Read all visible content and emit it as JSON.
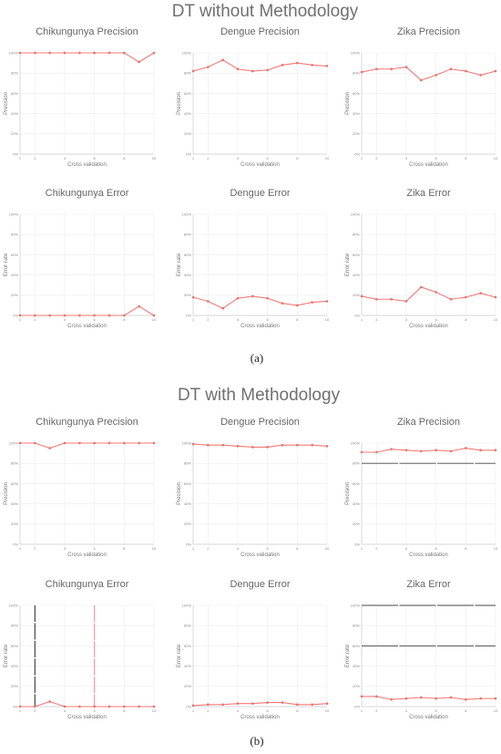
{
  "colors": {
    "series": "#f07b78",
    "point_stroke": "#e0605c",
    "artifact": "#444444",
    "artifact_pink": "#f59a98"
  },
  "sections": [
    {
      "title": "DT without Methodology",
      "panel_label": "(a)",
      "charts": [
        {
          "title": "Chikungunya Precision",
          "ylabel": "Precision",
          "xlabel": "Cross validation",
          "x": [
            1,
            2,
            3,
            4,
            5,
            6,
            7,
            8,
            9,
            10
          ],
          "values": [
            100,
            100,
            100,
            100,
            100,
            100,
            100,
            100,
            91,
            100
          ]
        },
        {
          "title": "Dengue Precision",
          "ylabel": "Precision",
          "xlabel": "Cross validation",
          "x": [
            1,
            2,
            3,
            4,
            5,
            6,
            7,
            8,
            9,
            10
          ],
          "values": [
            82,
            86,
            93,
            84,
            82,
            83,
            88,
            90,
            88,
            87
          ]
        },
        {
          "title": "Zika Precision",
          "ylabel": "Precision",
          "xlabel": "Cross validation",
          "x": [
            1,
            2,
            3,
            4,
            5,
            6,
            7,
            8,
            9,
            10
          ],
          "values": [
            81,
            84,
            84,
            86,
            73,
            78,
            84,
            82,
            78,
            82
          ]
        },
        {
          "title": "Chikungunya Error",
          "ylabel": "Error rate",
          "xlabel": "Cross validation",
          "x": [
            1,
            2,
            3,
            4,
            5,
            6,
            7,
            8,
            9,
            10
          ],
          "values": [
            0,
            0,
            0,
            0,
            0,
            0,
            0,
            0,
            9,
            0
          ]
        },
        {
          "title": "Dengue Error",
          "ylabel": "Error rate",
          "xlabel": "Cross validation",
          "x": [
            1,
            2,
            3,
            4,
            5,
            6,
            7,
            8,
            9,
            10
          ],
          "values": [
            18,
            14,
            7,
            17,
            19,
            17,
            12,
            10,
            13,
            14
          ]
        },
        {
          "title": "Zika Error",
          "ylabel": "Error rate",
          "xlabel": "Cross validation",
          "x": [
            1,
            2,
            3,
            4,
            5,
            6,
            7,
            8,
            9,
            10
          ],
          "values": [
            19,
            16,
            16,
            14,
            28,
            23,
            16,
            18,
            22,
            18
          ]
        }
      ]
    },
    {
      "title": "DT with Methodology",
      "panel_label": "(b)",
      "charts": [
        {
          "title": "Chikungunya Precision",
          "ylabel": "Precision",
          "xlabel": "Cross validation",
          "x": [
            1,
            2,
            3,
            4,
            5,
            6,
            7,
            8,
            9,
            10
          ],
          "values": [
            100,
            100,
            95,
            100,
            100,
            100,
            100,
            100,
            100,
            100
          ]
        },
        {
          "title": "Dengue Precision",
          "ylabel": "Precision",
          "xlabel": "Cross validation",
          "x": [
            1,
            2,
            3,
            4,
            5,
            6,
            7,
            8,
            9,
            10
          ],
          "values": [
            99,
            98,
            98,
            97,
            96,
            96,
            98,
            98,
            98,
            97
          ]
        },
        {
          "title": "Zika Precision",
          "ylabel": "Precision",
          "xlabel": "Cross validation",
          "x": [
            1,
            2,
            3,
            4,
            5,
            6,
            7,
            8,
            9,
            10
          ],
          "values": [
            91,
            91,
            94,
            93,
            92,
            93,
            92,
            95,
            93,
            93
          ],
          "artifact_hlines": [
            80
          ]
        },
        {
          "title": "Chikungunya Error",
          "ylabel": "Error rate",
          "xlabel": "Cross validation",
          "x": [
            1,
            2,
            3,
            4,
            5,
            6,
            7,
            8,
            9,
            10
          ],
          "values": [
            0,
            0,
            5,
            0,
            0,
            0,
            0,
            0,
            0,
            0
          ],
          "artifact_vlines": [
            2,
            6
          ]
        },
        {
          "title": "Dengue Error",
          "ylabel": "Error rate",
          "xlabel": "Cross validation",
          "x": [
            1,
            2,
            3,
            4,
            5,
            6,
            7,
            8,
            9,
            10
          ],
          "values": [
            1,
            2,
            2,
            3,
            3,
            4,
            4,
            2,
            2,
            3
          ]
        },
        {
          "title": "Zika Error",
          "ylabel": "Error rate",
          "xlabel": "Cross validation",
          "x": [
            1,
            2,
            3,
            4,
            5,
            6,
            7,
            8,
            9,
            10
          ],
          "values": [
            10,
            10,
            7,
            8,
            9,
            8,
            9,
            7,
            8,
            8
          ],
          "artifact_hlines": [
            100,
            60
          ]
        }
      ]
    }
  ],
  "chart_data": [
    {
      "type": "line",
      "title": "Chikungunya Precision",
      "xlabel": "Cross validation",
      "ylabel": "Precision",
      "x": [
        1,
        2,
        3,
        4,
        5,
        6,
        7,
        8,
        9,
        10
      ],
      "values": [
        100,
        100,
        100,
        100,
        100,
        100,
        100,
        100,
        91,
        100
      ],
      "ylim": [
        0,
        100
      ],
      "xlim": [
        1,
        10
      ],
      "grid": true,
      "legend": "none"
    },
    {
      "type": "line",
      "title": "Dengue Precision",
      "xlabel": "Cross validation",
      "ylabel": "Precision",
      "x": [
        1,
        2,
        3,
        4,
        5,
        6,
        7,
        8,
        9,
        10
      ],
      "values": [
        82,
        86,
        93,
        84,
        82,
        83,
        88,
        90,
        88,
        87
      ],
      "ylim": [
        0,
        100
      ],
      "xlim": [
        1,
        10
      ],
      "grid": true,
      "legend": "none"
    },
    {
      "type": "line",
      "title": "Zika Precision",
      "xlabel": "Cross validation",
      "ylabel": "Precision",
      "x": [
        1,
        2,
        3,
        4,
        5,
        6,
        7,
        8,
        9,
        10
      ],
      "values": [
        81,
        84,
        84,
        86,
        73,
        78,
        84,
        82,
        78,
        82
      ],
      "ylim": [
        0,
        100
      ],
      "xlim": [
        1,
        10
      ],
      "grid": true,
      "legend": "none"
    },
    {
      "type": "line",
      "title": "Chikungunya Error",
      "xlabel": "Cross validation",
      "ylabel": "Error rate",
      "x": [
        1,
        2,
        3,
        4,
        5,
        6,
        7,
        8,
        9,
        10
      ],
      "values": [
        0,
        0,
        0,
        0,
        0,
        0,
        0,
        0,
        9,
        0
      ],
      "ylim": [
        0,
        100
      ],
      "xlim": [
        1,
        10
      ],
      "grid": true,
      "legend": "none"
    },
    {
      "type": "line",
      "title": "Dengue Error",
      "xlabel": "Cross validation",
      "ylabel": "Error rate",
      "x": [
        1,
        2,
        3,
        4,
        5,
        6,
        7,
        8,
        9,
        10
      ],
      "values": [
        18,
        14,
        7,
        17,
        19,
        17,
        12,
        10,
        13,
        14
      ],
      "ylim": [
        0,
        100
      ],
      "xlim": [
        1,
        10
      ],
      "grid": true,
      "legend": "none"
    },
    {
      "type": "line",
      "title": "Zika Error",
      "xlabel": "Cross validation",
      "ylabel": "Error rate",
      "x": [
        1,
        2,
        3,
        4,
        5,
        6,
        7,
        8,
        9,
        10
      ],
      "values": [
        19,
        16,
        16,
        14,
        28,
        23,
        16,
        18,
        22,
        18
      ],
      "ylim": [
        0,
        100
      ],
      "xlim": [
        1,
        10
      ],
      "grid": true,
      "legend": "none"
    },
    {
      "type": "line",
      "title": "Chikungunya Precision",
      "xlabel": "Cross validation",
      "ylabel": "Precision",
      "x": [
        1,
        2,
        3,
        4,
        5,
        6,
        7,
        8,
        9,
        10
      ],
      "values": [
        100,
        100,
        95,
        100,
        100,
        100,
        100,
        100,
        100,
        100
      ],
      "ylim": [
        0,
        100
      ],
      "xlim": [
        1,
        10
      ],
      "grid": true,
      "legend": "none"
    },
    {
      "type": "line",
      "title": "Dengue Precision",
      "xlabel": "Cross validation",
      "ylabel": "Precision",
      "x": [
        1,
        2,
        3,
        4,
        5,
        6,
        7,
        8,
        9,
        10
      ],
      "values": [
        99,
        98,
        98,
        97,
        96,
        96,
        98,
        98,
        98,
        97
      ],
      "ylim": [
        0,
        100
      ],
      "xlim": [
        1,
        10
      ],
      "grid": true,
      "legend": "none"
    },
    {
      "type": "line",
      "title": "Zika Precision",
      "xlabel": "Cross validation",
      "ylabel": "Precision",
      "x": [
        1,
        2,
        3,
        4,
        5,
        6,
        7,
        8,
        9,
        10
      ],
      "values": [
        91,
        91,
        94,
        93,
        92,
        93,
        92,
        95,
        93,
        93
      ],
      "ylim": [
        0,
        100
      ],
      "xlim": [
        1,
        10
      ],
      "grid": true,
      "legend": "none"
    },
    {
      "type": "line",
      "title": "Chikungunya Error",
      "xlabel": "Cross validation",
      "ylabel": "Error rate",
      "x": [
        1,
        2,
        3,
        4,
        5,
        6,
        7,
        8,
        9,
        10
      ],
      "values": [
        0,
        0,
        5,
        0,
        0,
        0,
        0,
        0,
        0,
        0
      ],
      "ylim": [
        0,
        100
      ],
      "xlim": [
        1,
        10
      ],
      "grid": true,
      "legend": "none"
    },
    {
      "type": "line",
      "title": "Dengue Error",
      "xlabel": "Cross validation",
      "ylabel": "Error rate",
      "x": [
        1,
        2,
        3,
        4,
        5,
        6,
        7,
        8,
        9,
        10
      ],
      "values": [
        1,
        2,
        2,
        3,
        3,
        4,
        4,
        2,
        2,
        3
      ],
      "ylim": [
        0,
        100
      ],
      "xlim": [
        1,
        10
      ],
      "grid": true,
      "legend": "none"
    },
    {
      "type": "line",
      "title": "Zika Error",
      "xlabel": "Cross validation",
      "ylabel": "Error rate",
      "x": [
        1,
        2,
        3,
        4,
        5,
        6,
        7,
        8,
        9,
        10
      ],
      "values": [
        10,
        10,
        7,
        8,
        9,
        8,
        9,
        7,
        8,
        8
      ],
      "ylim": [
        0,
        100
      ],
      "xlim": [
        1,
        10
      ],
      "grid": true,
      "legend": "none"
    }
  ]
}
